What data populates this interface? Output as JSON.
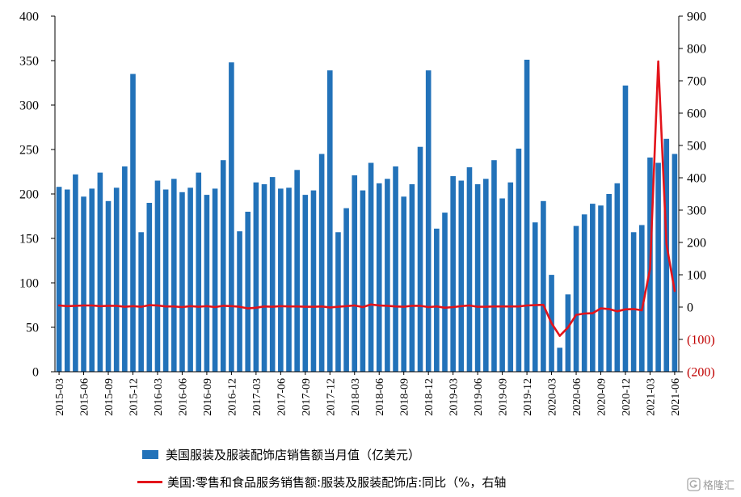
{
  "chart_data": {
    "type": "bar",
    "x_tick_labels": [
      "2015-03",
      "2015-06",
      "2015-09",
      "2015-12",
      "2016-03",
      "2016-06",
      "2016-09",
      "2016-12",
      "2017-03",
      "2017-06",
      "2017-09",
      "2017-12",
      "2018-03",
      "2018-06",
      "2018-09",
      "2018-12",
      "2019-03",
      "2019-06",
      "2019-09",
      "2019-12",
      "2020-03",
      "2020-06",
      "2020-09",
      "2020-12",
      "2021-03",
      "2021-06"
    ],
    "series": [
      {
        "name": "美国服装及服装配饰店销售额当月值（亿美元）",
        "type": "bar",
        "axis": "left",
        "values": [
          208,
          205,
          222,
          197,
          206,
          224,
          192,
          207,
          231,
          335,
          157,
          190,
          215,
          205,
          217,
          202,
          207,
          224,
          199,
          206,
          238,
          348,
          158,
          180,
          213,
          211,
          219,
          206,
          207,
          227,
          199,
          204,
          245,
          339,
          157,
          184,
          221,
          204,
          235,
          212,
          217,
          231,
          197,
          211,
          253,
          339,
          161,
          179,
          220,
          215,
          230,
          211,
          217,
          238,
          195,
          213,
          251,
          351,
          168,
          192,
          109,
          27,
          87,
          164,
          177,
          189,
          187,
          200,
          212,
          322,
          157,
          165,
          241,
          235,
          262,
          245
        ]
      },
      {
        "name": "美国:零售和食品服务销售额:服装及服装配饰店:同比（%，右轴",
        "type": "line",
        "axis": "right",
        "values": [
          5,
          3,
          4,
          5,
          5,
          3,
          4,
          4,
          1,
          3,
          1,
          6,
          5,
          2,
          2,
          0,
          3,
          1,
          3,
          0,
          4,
          3,
          1,
          -4,
          -2,
          2,
          1,
          3,
          2,
          2,
          1,
          1,
          2,
          -1,
          1,
          3,
          5,
          0,
          8,
          5,
          4,
          2,
          1,
          4,
          4,
          0,
          2,
          -2,
          0,
          3,
          5,
          1,
          1,
          2,
          2,
          2,
          2,
          5,
          6,
          7,
          -50,
          -89,
          -63,
          -24,
          -20,
          -19,
          -4,
          -6,
          -13,
          -7,
          -6,
          -10,
          118,
          760,
          195,
          50
        ]
      }
    ],
    "y_left": {
      "range": [
        0,
        400
      ],
      "ticks": [
        0,
        50,
        100,
        150,
        200,
        250,
        300,
        350,
        400
      ]
    },
    "y_right": {
      "range": [
        -200,
        900
      ],
      "ticks": [
        900,
        800,
        700,
        600,
        500,
        400,
        300,
        200,
        100,
        0,
        -100,
        -200
      ],
      "tick_labels": [
        "900",
        "800",
        "700",
        "600",
        "500",
        "400",
        "300",
        "200",
        "100",
        "0",
        "(100)",
        "(200)"
      ]
    },
    "grid": false,
    "legend_position": "bottom",
    "colors": {
      "bar": "#2272b9",
      "line": "#e3141b",
      "negative_tick_label": "#c00000",
      "axis": "#000000"
    }
  },
  "watermark": {
    "text": "格隆汇"
  }
}
